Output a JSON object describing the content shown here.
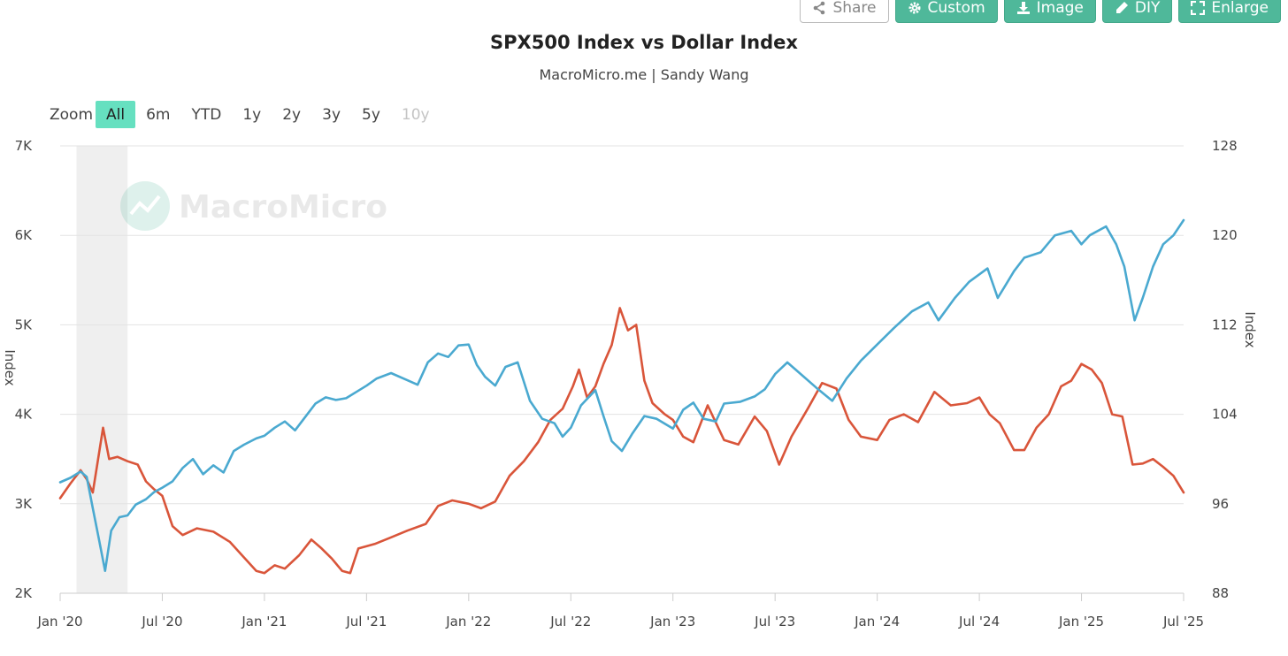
{
  "toolbar": {
    "share": "Share",
    "custom": "Custom",
    "image": "Image",
    "diy": "DIY",
    "enlarge": "Enlarge"
  },
  "zoom": {
    "label": "Zoom",
    "options": [
      "All",
      "6m",
      "YTD",
      "1y",
      "2y",
      "3y",
      "5y",
      "10y"
    ],
    "selected": "All",
    "disabled": [
      "10y"
    ]
  },
  "watermark": "MacroMicro",
  "colors": {
    "spx": "#4aa9d0",
    "dxy": "#d9553a",
    "accent": "#4fb89a",
    "zoom_active": "#66e0c0",
    "shade": "#efefef"
  },
  "chart_data": {
    "type": "line",
    "title": "SPX500 Index vs Dollar Index",
    "subtitle": "MacroMicro.me | Sandy Wang",
    "xlabel": "",
    "ylabel_left": "Index",
    "ylabel_right": "Index",
    "x_range": [
      2020.0,
      2025.5
    ],
    "x_ticks": [
      {
        "label": "Jan '20",
        "t": 2020.0
      },
      {
        "label": "Jul '20",
        "t": 2020.5
      },
      {
        "label": "Jan '21",
        "t": 2021.0
      },
      {
        "label": "Jul '21",
        "t": 2021.5
      },
      {
        "label": "Jan '22",
        "t": 2022.0
      },
      {
        "label": "Jul '22",
        "t": 2022.5
      },
      {
        "label": "Jan '23",
        "t": 2023.0
      },
      {
        "label": "Jul '23",
        "t": 2023.5
      },
      {
        "label": "Jan '24",
        "t": 2024.0
      },
      {
        "label": "Jul '24",
        "t": 2024.5
      },
      {
        "label": "Jan '25",
        "t": 2025.0
      },
      {
        "label": "Jul '25",
        "t": 2025.5
      }
    ],
    "y_left": {
      "min": 2000,
      "max": 7000,
      "ticks": [
        2000,
        3000,
        4000,
        5000,
        6000,
        7000
      ],
      "tick_labels": [
        "2K",
        "3K",
        "4K",
        "5K",
        "6K",
        "7K"
      ]
    },
    "y_right": {
      "min": 88,
      "max": 128,
      "ticks": [
        88,
        96,
        104,
        112,
        120,
        128
      ],
      "tick_labels": [
        "88",
        "96",
        "104",
        "112",
        "120",
        "128"
      ]
    },
    "grid": true,
    "recession_band": {
      "start": 2020.08,
      "end": 2020.33
    },
    "series": [
      {
        "name": "SPX500 Index",
        "axis": "left",
        "color": "#4aa9d0",
        "points": [
          [
            2020.0,
            3240
          ],
          [
            2020.05,
            3290
          ],
          [
            2020.1,
            3360
          ],
          [
            2020.13,
            3300
          ],
          [
            2020.16,
            2950
          ],
          [
            2020.19,
            2600
          ],
          [
            2020.22,
            2250
          ],
          [
            2020.25,
            2700
          ],
          [
            2020.29,
            2850
          ],
          [
            2020.33,
            2870
          ],
          [
            2020.37,
            2990
          ],
          [
            2020.42,
            3050
          ],
          [
            2020.46,
            3130
          ],
          [
            2020.5,
            3180
          ],
          [
            2020.55,
            3250
          ],
          [
            2020.6,
            3400
          ],
          [
            2020.65,
            3500
          ],
          [
            2020.7,
            3330
          ],
          [
            2020.75,
            3430
          ],
          [
            2020.8,
            3350
          ],
          [
            2020.85,
            3590
          ],
          [
            2020.9,
            3660
          ],
          [
            2020.96,
            3730
          ],
          [
            2021.0,
            3760
          ],
          [
            2021.05,
            3850
          ],
          [
            2021.1,
            3920
          ],
          [
            2021.15,
            3820
          ],
          [
            2021.2,
            3970
          ],
          [
            2021.25,
            4120
          ],
          [
            2021.3,
            4190
          ],
          [
            2021.35,
            4160
          ],
          [
            2021.4,
            4180
          ],
          [
            2021.45,
            4250
          ],
          [
            2021.5,
            4320
          ],
          [
            2021.55,
            4400
          ],
          [
            2021.62,
            4460
          ],
          [
            2021.7,
            4380
          ],
          [
            2021.75,
            4330
          ],
          [
            2021.8,
            4580
          ],
          [
            2021.85,
            4680
          ],
          [
            2021.9,
            4640
          ],
          [
            2021.95,
            4770
          ],
          [
            2022.0,
            4780
          ],
          [
            2022.04,
            4550
          ],
          [
            2022.08,
            4420
          ],
          [
            2022.13,
            4320
          ],
          [
            2022.18,
            4530
          ],
          [
            2022.24,
            4580
          ],
          [
            2022.3,
            4150
          ],
          [
            2022.36,
            3950
          ],
          [
            2022.42,
            3900
          ],
          [
            2022.46,
            3750
          ],
          [
            2022.5,
            3850
          ],
          [
            2022.55,
            4100
          ],
          [
            2022.62,
            4270
          ],
          [
            2022.66,
            3980
          ],
          [
            2022.7,
            3700
          ],
          [
            2022.75,
            3590
          ],
          [
            2022.8,
            3780
          ],
          [
            2022.86,
            3980
          ],
          [
            2022.92,
            3950
          ],
          [
            2023.0,
            3840
          ],
          [
            2023.05,
            4050
          ],
          [
            2023.1,
            4130
          ],
          [
            2023.15,
            3950
          ],
          [
            2023.21,
            3920
          ],
          [
            2023.25,
            4120
          ],
          [
            2023.33,
            4140
          ],
          [
            2023.4,
            4200
          ],
          [
            2023.45,
            4280
          ],
          [
            2023.5,
            4450
          ],
          [
            2023.56,
            4580
          ],
          [
            2023.62,
            4460
          ],
          [
            2023.7,
            4300
          ],
          [
            2023.78,
            4150
          ],
          [
            2023.85,
            4400
          ],
          [
            2023.92,
            4600
          ],
          [
            2024.0,
            4780
          ],
          [
            2024.08,
            4960
          ],
          [
            2024.17,
            5150
          ],
          [
            2024.25,
            5250
          ],
          [
            2024.3,
            5050
          ],
          [
            2024.38,
            5300
          ],
          [
            2024.45,
            5480
          ],
          [
            2024.54,
            5630
          ],
          [
            2024.59,
            5300
          ],
          [
            2024.63,
            5450
          ],
          [
            2024.67,
            5600
          ],
          [
            2024.72,
            5750
          ],
          [
            2024.8,
            5810
          ],
          [
            2024.87,
            6000
          ],
          [
            2024.95,
            6050
          ],
          [
            2025.0,
            5900
          ],
          [
            2025.04,
            6000
          ],
          [
            2025.12,
            6100
          ],
          [
            2025.17,
            5900
          ],
          [
            2025.21,
            5650
          ],
          [
            2025.26,
            5050
          ],
          [
            2025.3,
            5300
          ],
          [
            2025.35,
            5650
          ],
          [
            2025.4,
            5900
          ],
          [
            2025.45,
            6000
          ],
          [
            2025.5,
            6170
          ]
        ]
      },
      {
        "name": "Dollar Index",
        "axis": "right",
        "color": "#d9553a",
        "points": [
          [
            2020.0,
            96.5
          ],
          [
            2020.05,
            97.8
          ],
          [
            2020.1,
            99.0
          ],
          [
            2020.13,
            98.2
          ],
          [
            2020.16,
            97.0
          ],
          [
            2020.19,
            100.5
          ],
          [
            2020.21,
            102.8
          ],
          [
            2020.24,
            100.0
          ],
          [
            2020.28,
            100.2
          ],
          [
            2020.33,
            99.8
          ],
          [
            2020.38,
            99.5
          ],
          [
            2020.42,
            98.0
          ],
          [
            2020.46,
            97.3
          ],
          [
            2020.5,
            96.7
          ],
          [
            2020.55,
            94.0
          ],
          [
            2020.6,
            93.2
          ],
          [
            2020.67,
            93.8
          ],
          [
            2020.75,
            93.5
          ],
          [
            2020.83,
            92.6
          ],
          [
            2020.9,
            91.2
          ],
          [
            2020.96,
            90.0
          ],
          [
            2021.0,
            89.8
          ],
          [
            2021.05,
            90.5
          ],
          [
            2021.1,
            90.2
          ],
          [
            2021.17,
            91.4
          ],
          [
            2021.23,
            92.8
          ],
          [
            2021.28,
            92.0
          ],
          [
            2021.33,
            91.1
          ],
          [
            2021.38,
            90.0
          ],
          [
            2021.42,
            89.8
          ],
          [
            2021.46,
            92.0
          ],
          [
            2021.54,
            92.4
          ],
          [
            2021.62,
            93.0
          ],
          [
            2021.7,
            93.6
          ],
          [
            2021.79,
            94.2
          ],
          [
            2021.85,
            95.8
          ],
          [
            2021.92,
            96.3
          ],
          [
            2022.0,
            96.0
          ],
          [
            2022.06,
            95.6
          ],
          [
            2022.13,
            96.2
          ],
          [
            2022.2,
            98.5
          ],
          [
            2022.27,
            99.8
          ],
          [
            2022.34,
            101.5
          ],
          [
            2022.4,
            103.5
          ],
          [
            2022.46,
            104.5
          ],
          [
            2022.51,
            106.5
          ],
          [
            2022.54,
            108.0
          ],
          [
            2022.58,
            105.5
          ],
          [
            2022.62,
            106.5
          ],
          [
            2022.66,
            108.5
          ],
          [
            2022.7,
            110.2
          ],
          [
            2022.74,
            113.5
          ],
          [
            2022.78,
            111.5
          ],
          [
            2022.82,
            112.0
          ],
          [
            2022.86,
            107.0
          ],
          [
            2022.9,
            105.0
          ],
          [
            2022.96,
            104.0
          ],
          [
            2023.0,
            103.5
          ],
          [
            2023.05,
            102.0
          ],
          [
            2023.1,
            101.5
          ],
          [
            2023.17,
            104.8
          ],
          [
            2023.25,
            101.7
          ],
          [
            2023.32,
            101.3
          ],
          [
            2023.4,
            103.8
          ],
          [
            2023.46,
            102.5
          ],
          [
            2023.52,
            99.5
          ],
          [
            2023.58,
            102.0
          ],
          [
            2023.66,
            104.5
          ],
          [
            2023.73,
            106.8
          ],
          [
            2023.8,
            106.3
          ],
          [
            2023.86,
            103.5
          ],
          [
            2023.92,
            102.0
          ],
          [
            2024.0,
            101.7
          ],
          [
            2024.06,
            103.5
          ],
          [
            2024.13,
            104.0
          ],
          [
            2024.2,
            103.3
          ],
          [
            2024.28,
            106.0
          ],
          [
            2024.36,
            104.8
          ],
          [
            2024.44,
            105.0
          ],
          [
            2024.5,
            105.5
          ],
          [
            2024.55,
            104.0
          ],
          [
            2024.6,
            103.2
          ],
          [
            2024.67,
            100.8
          ],
          [
            2024.72,
            100.8
          ],
          [
            2024.78,
            102.8
          ],
          [
            2024.84,
            104.0
          ],
          [
            2024.9,
            106.5
          ],
          [
            2024.95,
            107.0
          ],
          [
            2025.0,
            108.5
          ],
          [
            2025.05,
            108.0
          ],
          [
            2025.1,
            106.8
          ],
          [
            2025.15,
            104.0
          ],
          [
            2025.2,
            103.8
          ],
          [
            2025.25,
            99.5
          ],
          [
            2025.3,
            99.6
          ],
          [
            2025.35,
            100.0
          ],
          [
            2025.4,
            99.3
          ],
          [
            2025.45,
            98.5
          ],
          [
            2025.5,
            97.0
          ]
        ]
      }
    ]
  }
}
